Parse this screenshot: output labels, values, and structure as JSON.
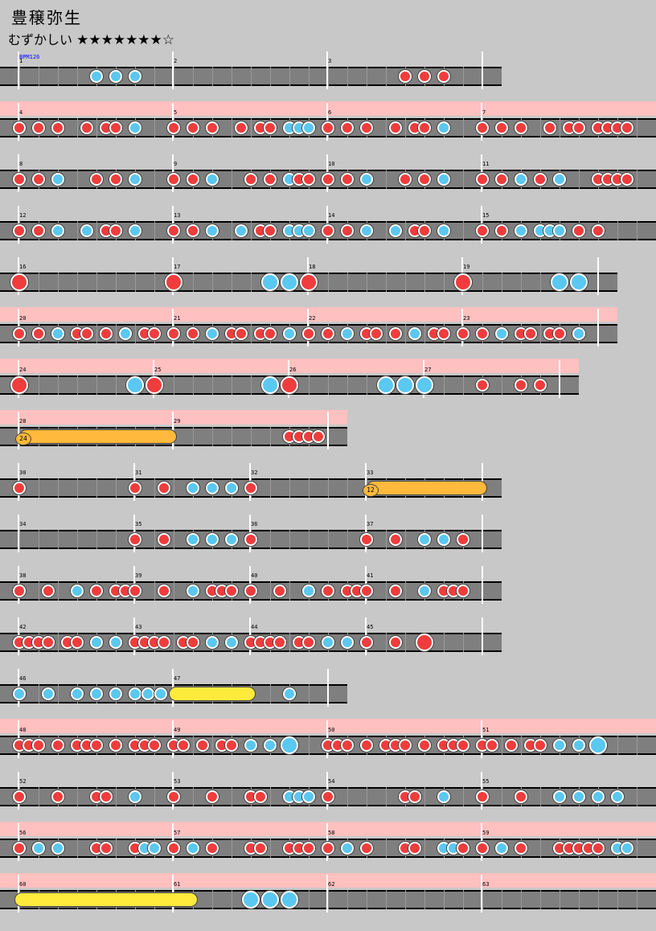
{
  "song": {
    "title": "豊穣弥生",
    "difficulty_label": "むずかしい",
    "stars": "★★★★★★★☆"
  },
  "bpm_label": "BPM126",
  "rows": [
    {
      "gogo": false,
      "measures": [
        1,
        2,
        3
      ]
    },
    {
      "gogo": true,
      "measures": [
        4,
        5,
        6,
        7
      ]
    },
    {
      "gogo": false,
      "measures": [
        8,
        9,
        10,
        11
      ]
    },
    {
      "gogo": false,
      "measures": [
        12,
        13,
        14,
        15
      ]
    },
    {
      "gogo": false,
      "measures": [
        16,
        17,
        18,
        19
      ]
    },
    {
      "gogo": true,
      "measures": [
        20,
        21,
        22,
        23
      ]
    },
    {
      "gogo": true,
      "measures": [
        24,
        25,
        26,
        27
      ]
    },
    {
      "gogo": true,
      "measures": [
        28,
        29
      ],
      "balloon_count": "24"
    },
    {
      "gogo": false,
      "measures": [
        30,
        31,
        32,
        33
      ],
      "balloon_count": "12"
    },
    {
      "gogo": false,
      "measures": [
        34,
        35,
        36,
        37
      ]
    },
    {
      "gogo": false,
      "measures": [
        38,
        39,
        40,
        41
      ]
    },
    {
      "gogo": false,
      "measures": [
        42,
        43,
        44,
        45
      ]
    },
    {
      "gogo": false,
      "measures": [
        46,
        47
      ]
    },
    {
      "gogo": true,
      "measures": [
        48,
        49,
        50,
        51
      ]
    },
    {
      "gogo": false,
      "measures": [
        52,
        53,
        54,
        55
      ]
    },
    {
      "gogo": true,
      "measures": [
        56,
        57,
        58,
        59
      ]
    },
    {
      "gogo": true,
      "measures": [
        60,
        61,
        62,
        63
      ]
    }
  ],
  "note_colors": {
    "don": "#f03c3c",
    "ka": "#5ac8f0",
    "balloon": "#ffb93c",
    "drumroll": "#ffeb3c",
    "gogo": "#ffc0c0"
  }
}
